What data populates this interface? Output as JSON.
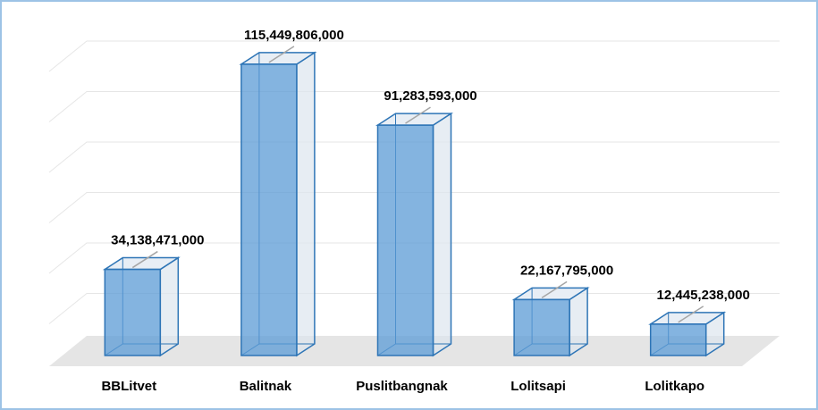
{
  "chart_data": {
    "type": "bar3d",
    "categories": [
      "BBLitvet",
      "Balitnak",
      "Puslitbangnak",
      "Lolitsapi",
      "Lolitkapo"
    ],
    "values": [
      34138471000,
      115449806000,
      91283593000,
      22167795000,
      12445238000
    ],
    "value_labels": [
      "34,138,471,000",
      "115,449,806,000",
      "91,283,593,000",
      "22,167,795,000",
      "12,445,238,000"
    ],
    "color": "#5b9bd5",
    "ylim": [
      0,
      120000000000
    ],
    "yticks": [
      0,
      20000000000,
      40000000000,
      60000000000,
      80000000000,
      100000000000,
      120000000000
    ],
    "grid": true
  }
}
